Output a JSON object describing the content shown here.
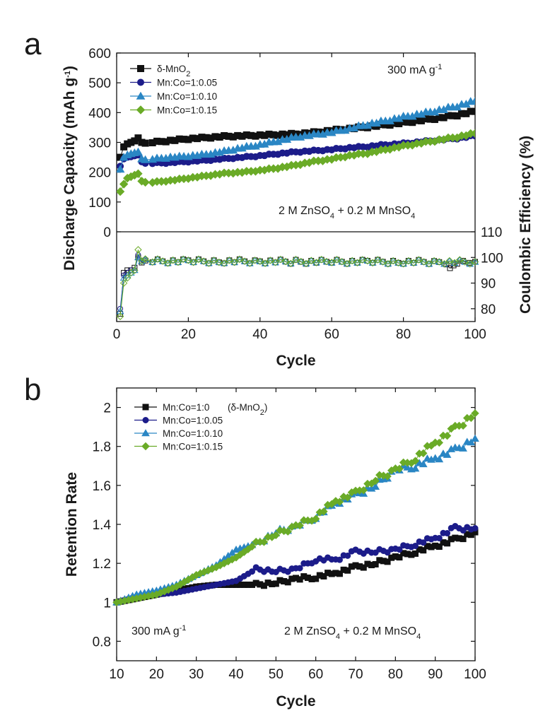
{
  "figure": {
    "panel_a_letter": "a",
    "panel_b_letter": "b"
  },
  "colors": {
    "dmno2": "#111111",
    "co005": "#1c1c8a",
    "co010": "#2a86c4",
    "co015": "#6aab27"
  },
  "chart_data": [
    {
      "panel": "a",
      "type": "scatter",
      "xlabel": "Cycle",
      "xlim": [
        0,
        100
      ],
      "xticks": [
        0,
        20,
        40,
        60,
        80,
        100
      ],
      "grid": false,
      "capacity": {
        "ylabel": "Discharge Capacity (mAh g-1)",
        "ylabel_main": "Discharge Capacity (mAh g",
        "ylabel_sup": "-1",
        "ylabel_tail": ")",
        "ylim": [
          0,
          600
        ],
        "yticks": [
          0,
          100,
          200,
          300,
          400,
          500,
          600
        ],
        "legend_position": "top-left",
        "annotation_rate": {
          "main": "300 mA g",
          "sup": "-1"
        },
        "annotation_electrolyte": {
          "p1": "2 M ZnSO",
          "s1": "4",
          "p2": " + 0.2 M MnSO",
          "s2": "4"
        },
        "series": [
          {
            "name": "δ-MnO2",
            "label_main": "δ-MnO",
            "label_sub": "2",
            "marker": "square",
            "x": [
              1,
              2,
              3,
              4,
              5,
              6,
              7,
              8,
              10,
              15,
              20,
              25,
              30,
              35,
              40,
              45,
              50,
              55,
              60,
              65,
              70,
              75,
              80,
              85,
              90,
              95,
              100
            ],
            "y": [
              250,
              285,
              295,
              300,
              305,
              315,
              300,
              295,
              300,
              306,
              312,
              316,
              320,
              322,
              324,
              326,
              328,
              333,
              340,
              346,
              352,
              359,
              366,
              374,
              382,
              392,
              404
            ]
          },
          {
            "name": "Mn:Co=1:0.05",
            "marker": "circle",
            "x": [
              1,
              2,
              3,
              4,
              5,
              6,
              7,
              8,
              10,
              15,
              20,
              25,
              30,
              35,
              40,
              45,
              50,
              55,
              60,
              65,
              70,
              75,
              80,
              85,
              90,
              95,
              100
            ],
            "y": [
              220,
              245,
              250,
              252,
              255,
              258,
              235,
              228,
              230,
              232,
              236,
              240,
              245,
              250,
              255,
              262,
              268,
              272,
              276,
              282,
              286,
              292,
              296,
              302,
              308,
              314,
              322
            ]
          },
          {
            "name": "Mn:Co=1:0.10",
            "marker": "triangle",
            "x": [
              1,
              2,
              3,
              4,
              5,
              6,
              7,
              8,
              10,
              15,
              20,
              25,
              30,
              35,
              40,
              45,
              50,
              55,
              60,
              65,
              70,
              75,
              80,
              85,
              90,
              95,
              100
            ],
            "y": [
              210,
              250,
              258,
              262,
              265,
              268,
              245,
              240,
              244,
              250,
              254,
              260,
              270,
              282,
              292,
              305,
              318,
              326,
              334,
              346,
              360,
              372,
              385,
              396,
              408,
              422,
              438
            ]
          },
          {
            "name": "Mn:Co=1:0.15",
            "marker": "diamond",
            "x": [
              1,
              2,
              3,
              4,
              5,
              6,
              7,
              8,
              10,
              15,
              20,
              25,
              30,
              35,
              40,
              45,
              50,
              55,
              60,
              65,
              70,
              75,
              80,
              85,
              90,
              95,
              100
            ],
            "y": [
              135,
              160,
              180,
              185,
              190,
              195,
              170,
              165,
              166,
              172,
              180,
              188,
              196,
              200,
              206,
              214,
              224,
              236,
              244,
              256,
              264,
              276,
              288,
              298,
              308,
              318,
              330
            ]
          }
        ]
      },
      "coulombic_efficiency": {
        "ylabel": "Coulombic Efficiency (%)",
        "ylim": [
          75,
          110
        ],
        "yticks": [
          80,
          90,
          100,
          110
        ],
        "series": [
          {
            "name": "δ-MnO2",
            "x": [
              1,
              2,
              3,
              4,
              5,
              6,
              7,
              8,
              10,
              20,
              30,
              40,
              50,
              60,
              70,
              80,
              90,
              92,
              93,
              94,
              95,
              100
            ],
            "y": [
              78,
              94,
              95,
              95,
              96,
              100,
              98,
              98,
              98.5,
              98.5,
              98.5,
              98.5,
              98.3,
              98.3,
              98.3,
              98.3,
              98.2,
              96.5,
              96.2,
              96.5,
              98.3,
              98.3
            ]
          },
          {
            "name": "Mn:Co=1:0.05",
            "x": [
              1,
              2,
              3,
              4,
              5,
              6,
              7,
              8,
              10,
              20,
              30,
              40,
              50,
              60,
              70,
              80,
              90,
              100
            ],
            "y": [
              80,
              93,
              94,
              95,
              95,
              101,
              98.5,
              98.5,
              98.5,
              98.5,
              98.4,
              98.4,
              98.3,
              98.3,
              98.3,
              98.2,
              98.2,
              98.2
            ]
          },
          {
            "name": "Mn:Co=1:0.10",
            "x": [
              1,
              2,
              3,
              4,
              5,
              6,
              7,
              8,
              10,
              20,
              30,
              40,
              50,
              60,
              70,
              80,
              90,
              100
            ],
            "y": [
              79,
              92,
              93,
              94,
              95,
              100,
              98.5,
              98.5,
              98.5,
              98.5,
              98.5,
              98.4,
              98.4,
              98.3,
              98.3,
              98.3,
              98.2,
              98.2
            ]
          },
          {
            "name": "Mn:Co=1:0.15",
            "x": [
              1,
              2,
              3,
              4,
              5,
              6,
              7,
              8,
              10,
              20,
              30,
              40,
              50,
              60,
              70,
              80,
              90,
              100
            ],
            "y": [
              77,
              90,
              92,
              94,
              95,
              103,
              98.6,
              98.6,
              98.6,
              98.5,
              98.5,
              98.5,
              98.4,
              98.4,
              98.3,
              98.3,
              98.3,
              98.3
            ]
          }
        ]
      }
    },
    {
      "panel": "b",
      "type": "scatter",
      "xlabel": "Cycle",
      "ylabel": "Retention Rate",
      "xlim": [
        10,
        100
      ],
      "ylim": [
        0.7,
        2.1
      ],
      "xticks": [
        10,
        20,
        30,
        40,
        50,
        60,
        70,
        80,
        90,
        100
      ],
      "yticks": [
        0.8,
        1.0,
        1.2,
        1.4,
        1.6,
        1.8,
        2.0
      ],
      "grid": false,
      "legend_position": "top-left",
      "legend_note": {
        "main": "(δ-MnO",
        "sub": "2",
        "tail": ")"
      },
      "annotation_rate": {
        "main": "300 mA g",
        "sup": "-1"
      },
      "annotation_electrolyte": {
        "p1": "2 M ZnSO",
        "s1": "4",
        "p2": " + 0.2 M MnSO",
        "s2": "4"
      },
      "series": [
        {
          "name": "Mn:Co=1:0",
          "marker": "square",
          "x": [
            10,
            15,
            20,
            25,
            30,
            35,
            40,
            45,
            50,
            55,
            60,
            65,
            70,
            75,
            80,
            85,
            90,
            95,
            100
          ],
          "y": [
            1.0,
            1.02,
            1.04,
            1.06,
            1.08,
            1.09,
            1.09,
            1.09,
            1.1,
            1.12,
            1.13,
            1.15,
            1.18,
            1.2,
            1.23,
            1.26,
            1.29,
            1.32,
            1.36
          ]
        },
        {
          "name": "Mn:Co=1:0.05",
          "marker": "circle",
          "x": [
            10,
            15,
            20,
            25,
            30,
            35,
            40,
            45,
            50,
            55,
            60,
            65,
            70,
            75,
            80,
            85,
            90,
            95,
            100
          ],
          "y": [
            1.0,
            1.03,
            1.04,
            1.05,
            1.07,
            1.09,
            1.11,
            1.17,
            1.16,
            1.17,
            1.22,
            1.22,
            1.26,
            1.26,
            1.27,
            1.3,
            1.33,
            1.38,
            1.38
          ]
        },
        {
          "name": "Mn:Co=1:0.10",
          "marker": "triangle",
          "x": [
            10,
            15,
            20,
            25,
            30,
            35,
            40,
            45,
            50,
            55,
            60,
            65,
            70,
            75,
            80,
            85,
            90,
            95,
            100
          ],
          "y": [
            1.0,
            1.04,
            1.06,
            1.09,
            1.14,
            1.19,
            1.27,
            1.3,
            1.36,
            1.39,
            1.44,
            1.51,
            1.55,
            1.6,
            1.68,
            1.7,
            1.74,
            1.78,
            1.84
          ]
        },
        {
          "name": "Mn:Co=1:0.15",
          "marker": "diamond",
          "x": [
            10,
            15,
            20,
            25,
            30,
            35,
            40,
            45,
            50,
            55,
            60,
            65,
            70,
            75,
            80,
            85,
            90,
            95,
            100
          ],
          "y": [
            1.0,
            1.02,
            1.04,
            1.08,
            1.14,
            1.18,
            1.23,
            1.3,
            1.35,
            1.39,
            1.44,
            1.52,
            1.56,
            1.63,
            1.68,
            1.74,
            1.82,
            1.89,
            1.97
          ]
        }
      ]
    }
  ]
}
